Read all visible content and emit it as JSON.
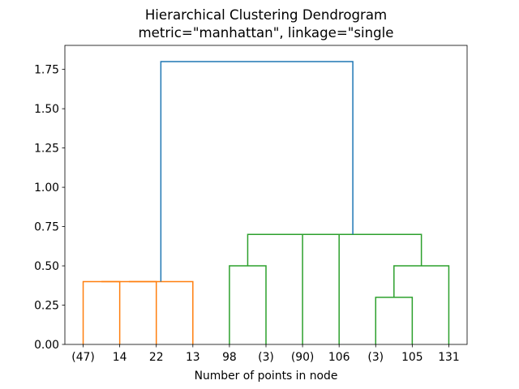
{
  "chart_data": {
    "type": "dendrogram",
    "title": "Hierarchical Clustering Dendrogram",
    "subtitle": "metric=\"manhattan\", linkage=\"single",
    "xlabel": "Number of points in node",
    "ylabel": "",
    "ylim": [
      0,
      1.903
    ],
    "x_range": [
      0,
      110
    ],
    "grid": false,
    "yticks": [
      "0.00",
      "0.25",
      "0.50",
      "0.75",
      "1.00",
      "1.25",
      "1.50",
      "1.75"
    ],
    "leaf_labels": [
      "(47)",
      "14",
      "22",
      "13",
      "98",
      "(3)",
      "(90)",
      "106",
      "(3)",
      "105",
      "131"
    ],
    "leaf_x": [
      5,
      15,
      25,
      35,
      45,
      55,
      65,
      75,
      85,
      95,
      105
    ],
    "colors": {
      "above_threshold_link": "#1f77b4",
      "cluster_left": "#ff7f0e",
      "cluster_right": "#2ca02c",
      "axes": "#000000",
      "text": "#000000",
      "background": "#ffffff"
    },
    "links": [
      {
        "x1": 5,
        "y1": 0,
        "x2": 15,
        "y2": 0,
        "height": 0.4,
        "color": "#ff7f0e"
      },
      {
        "x1": 10,
        "y1": 0.4,
        "x2": 25,
        "y2": 0,
        "height": 0.4,
        "color": "#ff7f0e"
      },
      {
        "x1": 17.5,
        "y1": 0.4,
        "x2": 35,
        "y2": 0,
        "height": 0.4,
        "color": "#ff7f0e"
      },
      {
        "x1": 45,
        "y1": 0,
        "x2": 55,
        "y2": 0,
        "height": 0.5,
        "color": "#2ca02c"
      },
      {
        "x1": 85,
        "y1": 0,
        "x2": 95,
        "y2": 0,
        "height": 0.3,
        "color": "#2ca02c"
      },
      {
        "x1": 90,
        "y1": 0.3,
        "x2": 105,
        "y2": 0,
        "height": 0.5,
        "color": "#2ca02c"
      },
      {
        "x1": 65,
        "y1": 0,
        "x2": 75,
        "y2": 0,
        "height": 0.7,
        "color": "#2ca02c"
      },
      {
        "x1": 50,
        "y1": 0.5,
        "x2": 70,
        "y2": 0.7,
        "height": 0.7,
        "color": "#2ca02c"
      },
      {
        "x1": 60,
        "y1": 0.7,
        "x2": 97.5,
        "y2": 0.5,
        "height": 0.7,
        "color": "#2ca02c"
      },
      {
        "x1": 26.25,
        "y1": 0.4,
        "x2": 78.75,
        "y2": 0.7,
        "height": 1.8,
        "color": "#1f77b4"
      }
    ]
  }
}
